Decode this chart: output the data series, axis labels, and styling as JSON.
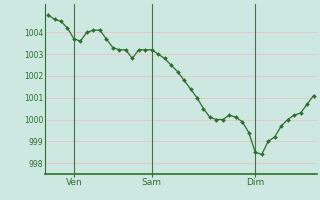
{
  "title": "",
  "bg_color": "#cce8e0",
  "line_color": "#2d6e2d",
  "marker_color": "#2d6e2d",
  "grid_color": "#e8c8c8",
  "axis_label_color": "#2d6e2d",
  "spine_color": "#2d6e2d",
  "vline_color": "#4a6e4a",
  "ylim": [
    997.5,
    1005.3
  ],
  "yticks": [
    998,
    999,
    1000,
    1001,
    1002,
    1003,
    1004
  ],
  "x_labels": [
    [
      "Ven",
      4
    ],
    [
      "Sam",
      16
    ],
    [
      "Dim",
      32
    ]
  ],
  "x_vlines": [
    4,
    16,
    32
  ],
  "values": [
    1004.8,
    1004.6,
    1004.5,
    1004.2,
    1003.7,
    1003.6,
    1004.0,
    1004.1,
    1004.1,
    1003.7,
    1003.3,
    1003.2,
    1003.2,
    1002.8,
    1003.2,
    1003.2,
    1003.2,
    1003.0,
    1002.8,
    1002.5,
    1002.2,
    1001.8,
    1001.4,
    1001.0,
    1000.5,
    1000.1,
    1000.0,
    1000.0,
    1000.2,
    1000.1,
    999.9,
    999.4,
    998.5,
    998.4,
    999.0,
    999.2,
    999.7,
    1000.0,
    1000.2,
    1000.3,
    1000.7,
    1001.1
  ],
  "figsize": [
    3.2,
    2.0
  ],
  "dpi": 100
}
